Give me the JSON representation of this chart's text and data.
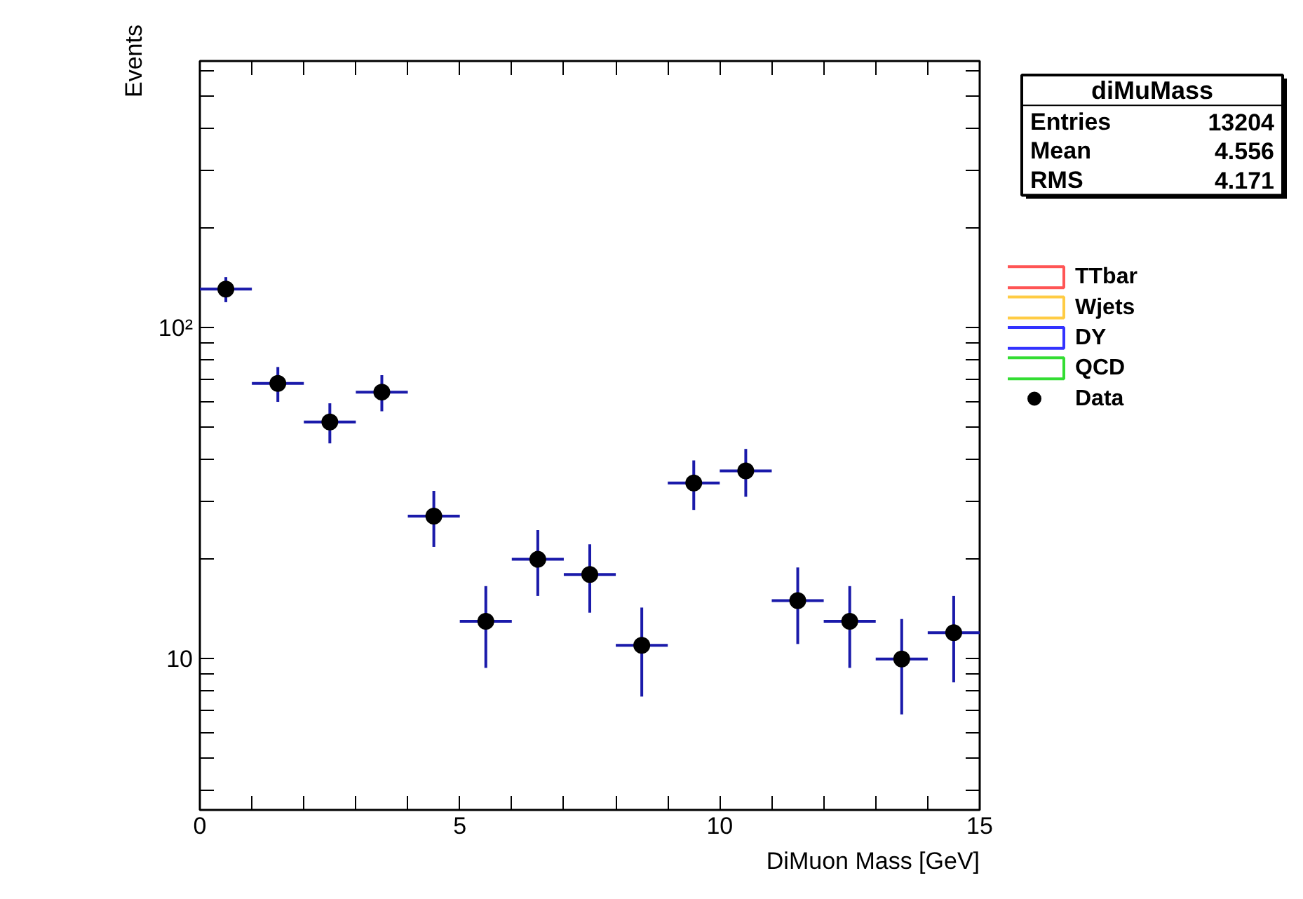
{
  "chart_data": {
    "type": "scatter",
    "xlabel": "DiMuon Mass [GeV]",
    "ylabel": "Events",
    "log": "y",
    "grid": false,
    "legend": "right",
    "marker": "circle",
    "x": [
      0.5,
      1.5,
      2.5,
      3.5,
      4.5,
      5.5,
      6.5,
      7.5,
      8.5,
      9.5,
      10.5,
      11.5,
      12.5,
      13.5,
      14.5
    ],
    "xlim": [
      0,
      15
    ],
    "xticks": [
      0,
      {
        "value": 1,
        "label": null
      },
      {
        "value": 2,
        "label": null
      },
      {
        "value": 3,
        "label": null
      },
      {
        "value": 4,
        "label": null
      },
      5,
      {
        "value": 6,
        "label": null
      },
      {
        "value": 7,
        "label": null
      },
      {
        "value": 8,
        "label": null
      },
      {
        "value": 9,
        "label": null
      },
      10,
      {
        "value": 11,
        "label": null
      },
      {
        "value": 12,
        "label": null
      },
      {
        "value": 13,
        "label": null
      },
      {
        "value": 14,
        "label": null
      },
      15
    ],
    "ylim": [
      3.5,
      640
    ],
    "yticks": [
      {
        "value": 4,
        "label": null
      },
      {
        "value": 5,
        "label": null
      },
      {
        "value": 6,
        "label": null
      },
      {
        "value": 7,
        "label": null
      },
      {
        "value": 8,
        "label": null
      },
      {
        "value": 9,
        "label": null
      },
      10,
      {
        "value": 20,
        "label": null
      },
      {
        "value": 30,
        "label": null
      },
      {
        "value": 40,
        "label": null
      },
      {
        "value": 50,
        "label": null
      },
      {
        "value": 60,
        "label": null
      },
      {
        "value": 70,
        "label": null
      },
      {
        "value": 80,
        "label": null
      },
      {
        "value": 90,
        "label": null
      },
      {
        "value": 100,
        "label": "10²"
      },
      {
        "value": 200,
        "label": null
      },
      {
        "value": 300,
        "label": null
      },
      {
        "value": 400,
        "label": null
      },
      {
        "value": 500,
        "label": null
      },
      {
        "value": 600,
        "label": null
      }
    ],
    "series": [
      {
        "name": "TTbar",
        "type": "bar",
        "color": "#ff5555",
        "values": [
          null,
          null,
          null,
          null,
          null,
          null,
          null,
          null,
          null,
          null,
          null,
          null,
          null,
          null,
          null
        ]
      },
      {
        "name": "Wjets",
        "type": "bar",
        "color": "#ffcc44",
        "values": [
          null,
          null,
          null,
          null,
          null,
          null,
          null,
          null,
          null,
          null,
          null,
          null,
          null,
          null,
          null
        ]
      },
      {
        "name": "DY",
        "type": "bar",
        "color": "#3333ff",
        "values": [
          null,
          null,
          null,
          null,
          null,
          null,
          null,
          null,
          null,
          null,
          null,
          null,
          null,
          null,
          null
        ]
      },
      {
        "name": "QCD",
        "type": "bar",
        "color": "#33dd33",
        "values": [
          null,
          null,
          null,
          null,
          null,
          null,
          null,
          null,
          null,
          null,
          null,
          null,
          null,
          null,
          null
        ]
      },
      {
        "name": "Data",
        "color": "#000000",
        "values": [
          131,
          68,
          52,
          64,
          27,
          13,
          20,
          18,
          11,
          34,
          37,
          15,
          13,
          10,
          12
        ],
        "errors": [
          11.4,
          8.2,
          7.2,
          8.0,
          5.2,
          3.6,
          4.5,
          4.2,
          3.3,
          5.8,
          6.1,
          3.9,
          3.6,
          3.2,
          3.5
        ],
        "xerrors": [
          0.5,
          0.5,
          0.5,
          0.5,
          0.5,
          0.5,
          0.5,
          0.5,
          0.5,
          0.5,
          0.5,
          0.5,
          0.5,
          0.5,
          0.5
        ]
      }
    ],
    "annotations": [
      "diMuMass",
      "Entries",
      "13204",
      "Mean",
      "4.556",
      "RMS",
      "4.171"
    ]
  }
}
